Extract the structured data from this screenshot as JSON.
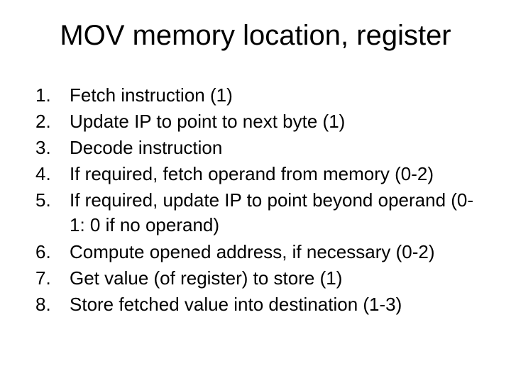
{
  "title": "MOV memory location, register",
  "title_fontsize": 40,
  "body_fontsize": 26,
  "background_color": "#ffffff",
  "text_color": "#000000",
  "font_family": "Arial, Helvetica, sans-serif",
  "list": [
    {
      "n": "1.",
      "text": "Fetch instruction (1)"
    },
    {
      "n": "2.",
      "text": "Update IP to point to next byte (1)"
    },
    {
      "n": "3.",
      "text": "Decode instruction"
    },
    {
      "n": "4.",
      "text": "If required, fetch operand from memory  (0-2)"
    },
    {
      "n": "5.",
      "text": "If required, update IP to point beyond operand (0-1: 0 if no operand)"
    },
    {
      "n": "6.",
      "text": "Compute opened address, if necessary (0-2)"
    },
    {
      "n": "7.",
      "text": "Get value (of register) to store (1)"
    },
    {
      "n": "8.",
      "text": "Store fetched value into destination (1-3)"
    }
  ]
}
